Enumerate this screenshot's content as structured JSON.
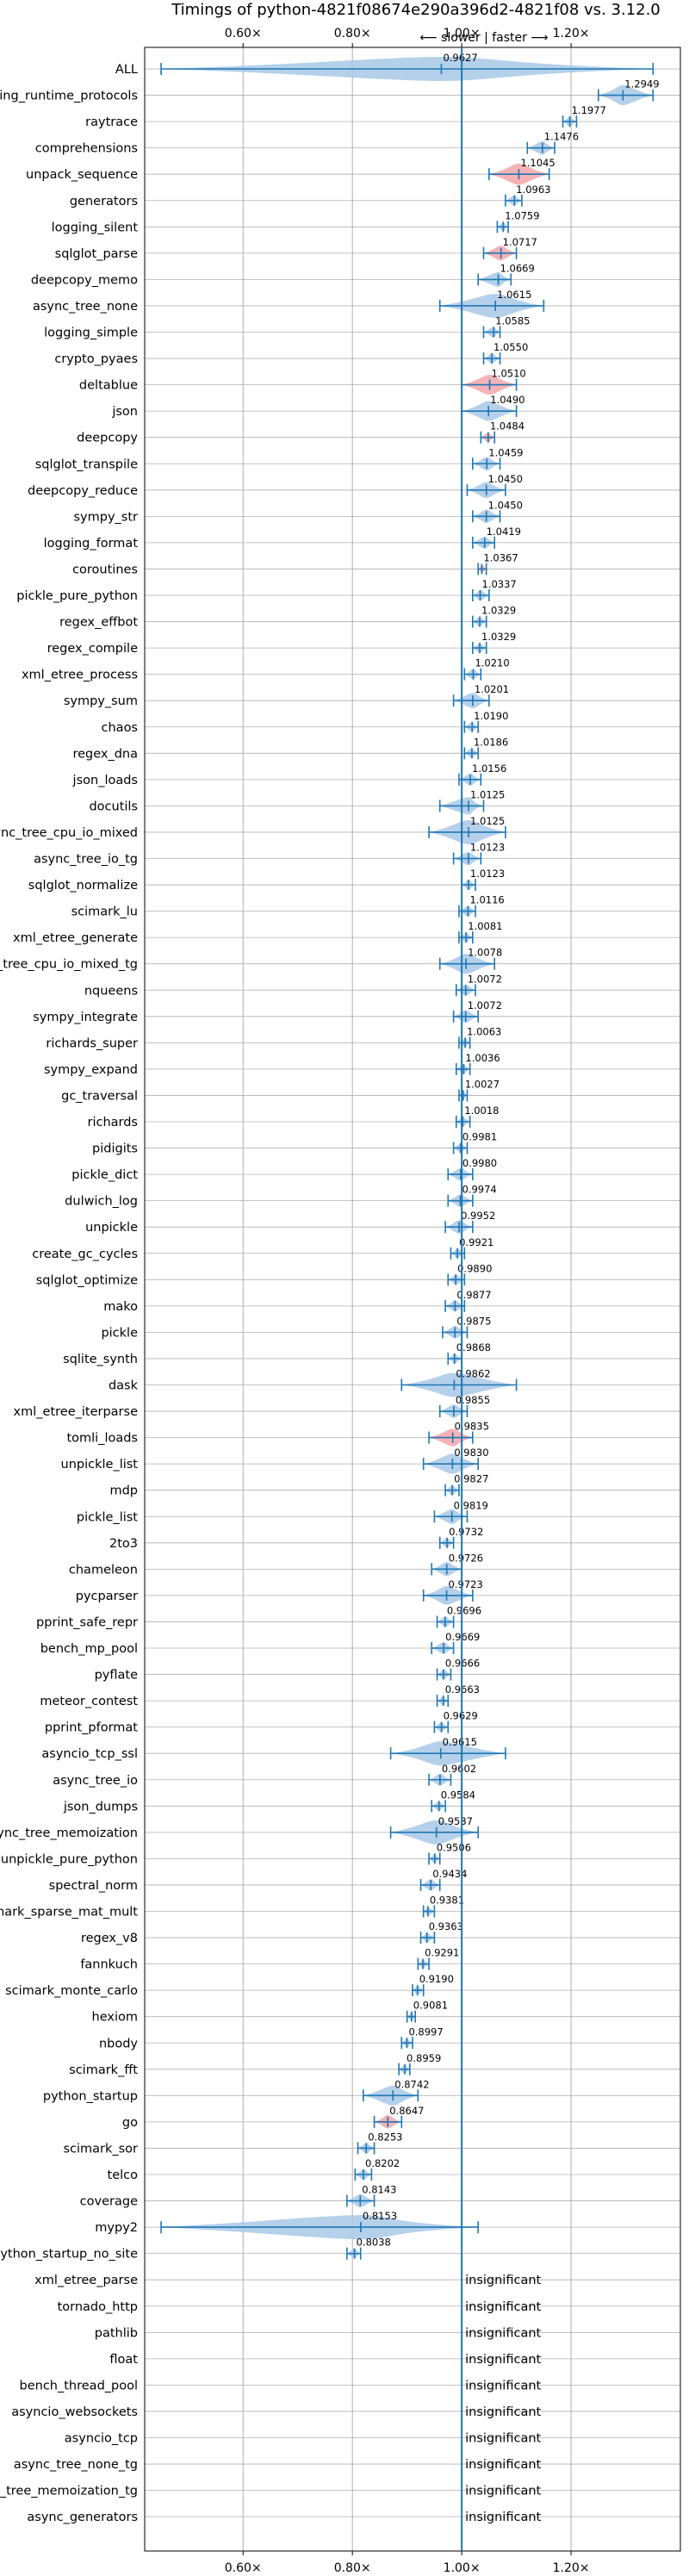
{
  "chart_data": {
    "type": "violin",
    "title": "Timings of python-4821f08674e290a396d2-4821f08 vs. 3.12.0",
    "annotation": "⟵ slower | faster ⟶",
    "xlabel": "",
    "ylabel": "",
    "xlim": [
      0.42,
      1.4
    ],
    "xticks": [
      0.6,
      0.8,
      1.0,
      1.2
    ],
    "xtick_labels": [
      "0.60×",
      "0.80×",
      "1.00×",
      "1.20×"
    ],
    "grid": true,
    "colors": {
      "violin": "#a8c8e6",
      "violin_highlight": "#f4a6aa",
      "line": "#1f77b4",
      "axis": "#000000",
      "grid": "#b0b0b0"
    },
    "benchmarks": [
      {
        "name": "ALL",
        "value": 0.9627,
        "min": 0.45,
        "max": 1.35,
        "hl": false
      },
      {
        "name": "typing_runtime_protocols",
        "value": 1.2949,
        "min": 1.25,
        "max": 1.35,
        "hl": false
      },
      {
        "name": "raytrace",
        "value": 1.1977,
        "min": 1.185,
        "max": 1.21,
        "hl": false
      },
      {
        "name": "comprehensions",
        "value": 1.1476,
        "min": 1.12,
        "max": 1.17,
        "hl": false
      },
      {
        "name": "unpack_sequence",
        "value": 1.1045,
        "min": 1.05,
        "max": 1.16,
        "hl": true
      },
      {
        "name": "generators",
        "value": 1.0963,
        "min": 1.08,
        "max": 1.11,
        "hl": false
      },
      {
        "name": "logging_silent",
        "value": 1.0759,
        "min": 1.065,
        "max": 1.085,
        "hl": false
      },
      {
        "name": "sqlglot_parse",
        "value": 1.0717,
        "min": 1.04,
        "max": 1.1,
        "hl": true
      },
      {
        "name": "deepcopy_memo",
        "value": 1.0669,
        "min": 1.03,
        "max": 1.09,
        "hl": false
      },
      {
        "name": "async_tree_none",
        "value": 1.0615,
        "min": 0.96,
        "max": 1.15,
        "hl": false
      },
      {
        "name": "logging_simple",
        "value": 1.0585,
        "min": 1.04,
        "max": 1.07,
        "hl": false
      },
      {
        "name": "crypto_pyaes",
        "value": 1.055,
        "min": 1.04,
        "max": 1.07,
        "hl": false
      },
      {
        "name": "deltablue",
        "value": 1.051,
        "min": 1.0,
        "max": 1.1,
        "hl": true
      },
      {
        "name": "json",
        "value": 1.049,
        "min": 1.0,
        "max": 1.1,
        "hl": false
      },
      {
        "name": "deepcopy",
        "value": 1.0484,
        "min": 1.035,
        "max": 1.06,
        "hl": true
      },
      {
        "name": "sqlglot_transpile",
        "value": 1.0459,
        "min": 1.02,
        "max": 1.07,
        "hl": false
      },
      {
        "name": "deepcopy_reduce",
        "value": 1.045,
        "min": 1.01,
        "max": 1.08,
        "hl": false
      },
      {
        "name": "sympy_str",
        "value": 1.045,
        "min": 1.02,
        "max": 1.07,
        "hl": false
      },
      {
        "name": "logging_format",
        "value": 1.0419,
        "min": 1.02,
        "max": 1.06,
        "hl": false
      },
      {
        "name": "coroutines",
        "value": 1.0367,
        "min": 1.03,
        "max": 1.045,
        "hl": true
      },
      {
        "name": "pickle_pure_python",
        "value": 1.0337,
        "min": 1.02,
        "max": 1.05,
        "hl": false
      },
      {
        "name": "regex_effbot",
        "value": 1.0329,
        "min": 1.02,
        "max": 1.045,
        "hl": false
      },
      {
        "name": "regex_compile",
        "value": 1.0329,
        "min": 1.02,
        "max": 1.045,
        "hl": false
      },
      {
        "name": "xml_etree_process",
        "value": 1.021,
        "min": 1.005,
        "max": 1.035,
        "hl": false
      },
      {
        "name": "sympy_sum",
        "value": 1.0201,
        "min": 0.985,
        "max": 1.05,
        "hl": false
      },
      {
        "name": "chaos",
        "value": 1.019,
        "min": 1.005,
        "max": 1.03,
        "hl": false
      },
      {
        "name": "regex_dna",
        "value": 1.0186,
        "min": 1.005,
        "max": 1.03,
        "hl": false
      },
      {
        "name": "json_loads",
        "value": 1.0156,
        "min": 0.995,
        "max": 1.035,
        "hl": false
      },
      {
        "name": "docutils",
        "value": 1.0125,
        "min": 0.96,
        "max": 1.04,
        "hl": false
      },
      {
        "name": "async_tree_cpu_io_mixed",
        "value": 1.0125,
        "min": 0.94,
        "max": 1.08,
        "hl": false
      },
      {
        "name": "async_tree_io_tg",
        "value": 1.0123,
        "min": 0.985,
        "max": 1.035,
        "hl": false
      },
      {
        "name": "sqlglot_normalize",
        "value": 1.0123,
        "min": 1.0,
        "max": 1.025,
        "hl": false
      },
      {
        "name": "scimark_lu",
        "value": 1.0116,
        "min": 0.995,
        "max": 1.025,
        "hl": false
      },
      {
        "name": "xml_etree_generate",
        "value": 1.0081,
        "min": 0.995,
        "max": 1.02,
        "hl": false
      },
      {
        "name": "async_tree_cpu_io_mixed_tg",
        "value": 1.0078,
        "min": 0.96,
        "max": 1.06,
        "hl": false
      },
      {
        "name": "nqueens",
        "value": 1.0072,
        "min": 0.99,
        "max": 1.025,
        "hl": false
      },
      {
        "name": "sympy_integrate",
        "value": 1.0072,
        "min": 0.985,
        "max": 1.03,
        "hl": false
      },
      {
        "name": "richards_super",
        "value": 1.0063,
        "min": 0.995,
        "max": 1.015,
        "hl": false
      },
      {
        "name": "sympy_expand",
        "value": 1.0036,
        "min": 0.99,
        "max": 1.015,
        "hl": false
      },
      {
        "name": "gc_traversal",
        "value": 1.0027,
        "min": 0.995,
        "max": 1.01,
        "hl": false
      },
      {
        "name": "richards",
        "value": 1.0018,
        "min": 0.99,
        "max": 1.015,
        "hl": false
      },
      {
        "name": "pidigits",
        "value": 0.9981,
        "min": 0.985,
        "max": 1.01,
        "hl": false
      },
      {
        "name": "pickle_dict",
        "value": 0.998,
        "min": 0.975,
        "max": 1.02,
        "hl": false
      },
      {
        "name": "dulwich_log",
        "value": 0.9974,
        "min": 0.975,
        "max": 1.02,
        "hl": false
      },
      {
        "name": "unpickle",
        "value": 0.9952,
        "min": 0.97,
        "max": 1.02,
        "hl": false
      },
      {
        "name": "create_gc_cycles",
        "value": 0.9921,
        "min": 0.98,
        "max": 1.005,
        "hl": false
      },
      {
        "name": "sqlglot_optimize",
        "value": 0.989,
        "min": 0.975,
        "max": 1.005,
        "hl": false
      },
      {
        "name": "mako",
        "value": 0.9877,
        "min": 0.97,
        "max": 1.005,
        "hl": false
      },
      {
        "name": "pickle",
        "value": 0.9875,
        "min": 0.965,
        "max": 1.01,
        "hl": false
      },
      {
        "name": "sqlite_synth",
        "value": 0.9868,
        "min": 0.975,
        "max": 1.0,
        "hl": false
      },
      {
        "name": "dask",
        "value": 0.9862,
        "min": 0.89,
        "max": 1.1,
        "hl": false
      },
      {
        "name": "xml_etree_iterparse",
        "value": 0.9855,
        "min": 0.96,
        "max": 1.01,
        "hl": false
      },
      {
        "name": "tomli_loads",
        "value": 0.9835,
        "min": 0.94,
        "max": 1.02,
        "hl": true
      },
      {
        "name": "unpickle_list",
        "value": 0.983,
        "min": 0.93,
        "max": 1.03,
        "hl": false
      },
      {
        "name": "mdp",
        "value": 0.9827,
        "min": 0.97,
        "max": 0.995,
        "hl": false
      },
      {
        "name": "pickle_list",
        "value": 0.9819,
        "min": 0.95,
        "max": 1.01,
        "hl": false
      },
      {
        "name": "2to3",
        "value": 0.9732,
        "min": 0.96,
        "max": 0.985,
        "hl": false
      },
      {
        "name": "chameleon",
        "value": 0.9726,
        "min": 0.945,
        "max": 1.0,
        "hl": false
      },
      {
        "name": "pycparser",
        "value": 0.9723,
        "min": 0.93,
        "max": 1.02,
        "hl": false
      },
      {
        "name": "pprint_safe_repr",
        "value": 0.9696,
        "min": 0.955,
        "max": 0.985,
        "hl": false
      },
      {
        "name": "bench_mp_pool",
        "value": 0.9669,
        "min": 0.945,
        "max": 0.985,
        "hl": false
      },
      {
        "name": "pyflate",
        "value": 0.9666,
        "min": 0.955,
        "max": 0.98,
        "hl": false
      },
      {
        "name": "meteor_contest",
        "value": 0.9663,
        "min": 0.955,
        "max": 0.975,
        "hl": false
      },
      {
        "name": "pprint_pformat",
        "value": 0.9629,
        "min": 0.95,
        "max": 0.975,
        "hl": false
      },
      {
        "name": "asyncio_tcp_ssl",
        "value": 0.9615,
        "min": 0.87,
        "max": 1.08,
        "hl": false
      },
      {
        "name": "async_tree_io",
        "value": 0.9602,
        "min": 0.94,
        "max": 0.98,
        "hl": false
      },
      {
        "name": "json_dumps",
        "value": 0.9584,
        "min": 0.945,
        "max": 0.97,
        "hl": false
      },
      {
        "name": "async_tree_memoization",
        "value": 0.9537,
        "min": 0.87,
        "max": 1.03,
        "hl": false
      },
      {
        "name": "unpickle_pure_python",
        "value": 0.9506,
        "min": 0.94,
        "max": 0.96,
        "hl": false
      },
      {
        "name": "spectral_norm",
        "value": 0.9434,
        "min": 0.925,
        "max": 0.96,
        "hl": false
      },
      {
        "name": "scimark_sparse_mat_mult",
        "value": 0.9381,
        "min": 0.93,
        "max": 0.95,
        "hl": false
      },
      {
        "name": "regex_v8",
        "value": 0.9363,
        "min": 0.925,
        "max": 0.95,
        "hl": false
      },
      {
        "name": "fannkuch",
        "value": 0.9291,
        "min": 0.92,
        "max": 0.94,
        "hl": false
      },
      {
        "name": "scimark_monte_carlo",
        "value": 0.919,
        "min": 0.91,
        "max": 0.93,
        "hl": false
      },
      {
        "name": "hexiom",
        "value": 0.9081,
        "min": 0.9,
        "max": 0.915,
        "hl": false
      },
      {
        "name": "nbody",
        "value": 0.8997,
        "min": 0.89,
        "max": 0.91,
        "hl": false
      },
      {
        "name": "scimark_fft",
        "value": 0.8959,
        "min": 0.885,
        "max": 0.905,
        "hl": false
      },
      {
        "name": "python_startup",
        "value": 0.8742,
        "min": 0.82,
        "max": 0.92,
        "hl": false
      },
      {
        "name": "go",
        "value": 0.8647,
        "min": 0.84,
        "max": 0.89,
        "hl": true
      },
      {
        "name": "scimark_sor",
        "value": 0.8253,
        "min": 0.81,
        "max": 0.84,
        "hl": false
      },
      {
        "name": "telco",
        "value": 0.8202,
        "min": 0.805,
        "max": 0.835,
        "hl": false
      },
      {
        "name": "coverage",
        "value": 0.8143,
        "min": 0.79,
        "max": 0.84,
        "hl": false
      },
      {
        "name": "mypy2",
        "value": 0.8153,
        "min": 0.45,
        "max": 1.03,
        "hl": false
      },
      {
        "name": "python_startup_no_site",
        "value": 0.8038,
        "min": 0.79,
        "max": 0.815,
        "hl": false
      }
    ],
    "value_labels": [
      "0.9627",
      "1.2949",
      "1.1977",
      "1.1476",
      "1.1045",
      "1.0963",
      "1.0759",
      "1.0717",
      "1.0669",
      "1.0615",
      "1.0585",
      "1.0550",
      "1.0510",
      "1.0490",
      "1.0484",
      "1.0459",
      "1.0450",
      "1.0450",
      "1.0419",
      "1.0367",
      "1.0337",
      "1.0329",
      "1.0329",
      "1.0210",
      "1.0201",
      "1.0190",
      "1.0186",
      "1.0156",
      "1.0125",
      "1.0125",
      "1.0123",
      "1.0123",
      "1.0116",
      "1.0081",
      "1.0078",
      "1.0072",
      "1.0072",
      "1.0063",
      "1.0036",
      "1.0027",
      "1.0018",
      "0.9981",
      "0.9980",
      "0.9974",
      "0.9952",
      "0.9921",
      "0.9890",
      "0.9877",
      "0.9875",
      "0.9868",
      "0.9862",
      "0.9855",
      "0.9835",
      "0.9830",
      "0.9827",
      "0.9819",
      "0.9732",
      "0.9726",
      "0.9723",
      "0.9696",
      "0.9669",
      "0.9666",
      "0.9663",
      "0.9629",
      "0.9615",
      "0.9602",
      "0.9584",
      "0.9537",
      "0.9506",
      "0.9434",
      "0.9381",
      "0.9363",
      "0.9291",
      "0.9190",
      "0.9081",
      "0.8997",
      "0.8959",
      "0.8742",
      "0.8647",
      "0.8253",
      "0.8202",
      "0.8143",
      "0.8153",
      "0.8038"
    ],
    "insignificant_label": "insignificant",
    "insignificant": [
      "xml_etree_parse",
      "tornado_http",
      "pathlib",
      "float",
      "bench_thread_pool",
      "asyncio_websockets",
      "asyncio_tcp",
      "async_tree_none_tg",
      "async_tree_memoization_tg",
      "async_generators"
    ]
  }
}
